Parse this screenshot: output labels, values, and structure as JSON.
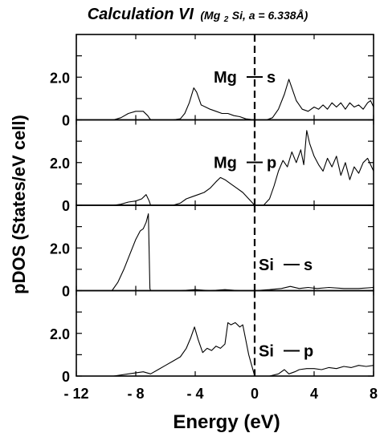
{
  "chart_data": {
    "type": "line",
    "title": "Calculation VI",
    "subtitle": "(Mg2Si, a = 6.338Å)",
    "subtitle_parts": {
      "pre": "(Mg",
      "sub": "2",
      "post": "Si, a = 6.338Å)"
    },
    "xlabel": "Energy (eV)",
    "ylabel": "pDOS (States/eV cell)",
    "xlim": [
      -12,
      8
    ],
    "x_ticks": [
      -12,
      -8,
      -4,
      0,
      4,
      8
    ],
    "x_tick_labels": [
      "- 12",
      "- 8",
      "- 4",
      "0",
      "4",
      "8"
    ],
    "ylim": [
      0,
      4
    ],
    "y_tick_labels": [
      "0",
      "2.0"
    ],
    "fermi_level": 0,
    "panels": [
      {
        "name": "Mg — s",
        "label_parts": {
          "a": "Mg",
          "b": "s"
        },
        "series": [
          [
            -12,
            0
          ],
          [
            -9.5,
            0
          ],
          [
            -9,
            0.1
          ],
          [
            -8.5,
            0.3
          ],
          [
            -8,
            0.4
          ],
          [
            -7.5,
            0.4
          ],
          [
            -7.2,
            0.2
          ],
          [
            -7,
            0
          ],
          [
            -5.5,
            0
          ],
          [
            -5,
            0.05
          ],
          [
            -4.7,
            0.3
          ],
          [
            -4.4,
            0.8
          ],
          [
            -4.1,
            1.5
          ],
          [
            -3.9,
            1.3
          ],
          [
            -3.6,
            0.7
          ],
          [
            -3.3,
            0.6
          ],
          [
            -3,
            0.5
          ],
          [
            -2.6,
            0.4
          ],
          [
            -2.2,
            0.3
          ],
          [
            -1.8,
            0.3
          ],
          [
            -1.4,
            0.2
          ],
          [
            -1,
            0.15
          ],
          [
            -0.6,
            0.05
          ],
          [
            0,
            0
          ],
          [
            0.8,
            0
          ],
          [
            1.2,
            0.1
          ],
          [
            1.6,
            0.5
          ],
          [
            2,
            1.2
          ],
          [
            2.3,
            1.9
          ],
          [
            2.5,
            1.5
          ],
          [
            2.8,
            0.9
          ],
          [
            3.2,
            0.5
          ],
          [
            3.6,
            0.4
          ],
          [
            4,
            0.6
          ],
          [
            4.3,
            0.5
          ],
          [
            4.6,
            0.7
          ],
          [
            4.9,
            0.5
          ],
          [
            5.2,
            0.8
          ],
          [
            5.5,
            0.6
          ],
          [
            5.8,
            0.8
          ],
          [
            6.1,
            0.5
          ],
          [
            6.4,
            0.8
          ],
          [
            6.7,
            0.6
          ],
          [
            7,
            0.7
          ],
          [
            7.3,
            0.5
          ],
          [
            7.6,
            0.8
          ],
          [
            7.8,
            0.9
          ],
          [
            8,
            0.6
          ]
        ]
      },
      {
        "name": "Mg — p",
        "label_parts": {
          "a": "Mg",
          "b": "p"
        },
        "series": [
          [
            -12,
            0
          ],
          [
            -9.5,
            0
          ],
          [
            -9,
            0.05
          ],
          [
            -8.5,
            0.15
          ],
          [
            -8,
            0.2
          ],
          [
            -7.6,
            0.3
          ],
          [
            -7.3,
            0.5
          ],
          [
            -7.1,
            0.2
          ],
          [
            -7,
            0
          ],
          [
            -5.5,
            0
          ],
          [
            -5,
            0.1
          ],
          [
            -4.6,
            0.3
          ],
          [
            -4.2,
            0.4
          ],
          [
            -3.8,
            0.5
          ],
          [
            -3.4,
            0.6
          ],
          [
            -3,
            0.8
          ],
          [
            -2.6,
            1.1
          ],
          [
            -2.3,
            1.3
          ],
          [
            -2,
            1.2
          ],
          [
            -1.6,
            1
          ],
          [
            -1.2,
            0.8
          ],
          [
            -0.8,
            0.6
          ],
          [
            -0.4,
            0.3
          ],
          [
            0,
            0
          ],
          [
            0.6,
            0
          ],
          [
            1,
            0.3
          ],
          [
            1.3,
            0.9
          ],
          [
            1.6,
            1.6
          ],
          [
            1.9,
            2.1
          ],
          [
            2.2,
            1.8
          ],
          [
            2.5,
            2.5
          ],
          [
            2.8,
            2
          ],
          [
            3.1,
            2.6
          ],
          [
            3.3,
            1.9
          ],
          [
            3.5,
            3.5
          ],
          [
            3.7,
            2.9
          ],
          [
            4,
            2.3
          ],
          [
            4.3,
            1.9
          ],
          [
            4.6,
            1.6
          ],
          [
            4.9,
            2.2
          ],
          [
            5.2,
            1.8
          ],
          [
            5.5,
            2.3
          ],
          [
            5.8,
            1.4
          ],
          [
            6.1,
            2
          ],
          [
            6.4,
            1.2
          ],
          [
            6.7,
            1.8
          ],
          [
            7,
            1.5
          ],
          [
            7.3,
            2
          ],
          [
            7.6,
            2.2
          ],
          [
            8,
            1.6
          ]
        ]
      },
      {
        "name": "Si — s",
        "label_parts": {
          "a": "Si",
          "b": "s"
        },
        "series": [
          [
            -12,
            0
          ],
          [
            -9.6,
            0
          ],
          [
            -9.2,
            0.4
          ],
          [
            -8.8,
            1
          ],
          [
            -8.4,
            1.7
          ],
          [
            -8,
            2.4
          ],
          [
            -7.7,
            2.8
          ],
          [
            -7.5,
            2.9
          ],
          [
            -7.3,
            3.2
          ],
          [
            -7.15,
            3.6
          ],
          [
            -7.05,
            0.1
          ],
          [
            -7,
            0
          ],
          [
            -5,
            0
          ],
          [
            -4,
            0.05
          ],
          [
            -3,
            0
          ],
          [
            -2,
            0.05
          ],
          [
            -1,
            0
          ],
          [
            0,
            0
          ],
          [
            1,
            0.05
          ],
          [
            1.8,
            0.1
          ],
          [
            2.4,
            0.2
          ],
          [
            3,
            0.1
          ],
          [
            3.6,
            0.15
          ],
          [
            4.2,
            0.1
          ],
          [
            5,
            0.15
          ],
          [
            6,
            0.1
          ],
          [
            7,
            0.1
          ],
          [
            8,
            0.15
          ]
        ]
      },
      {
        "name": "Si — p",
        "label_parts": {
          "a": "Si",
          "b": "p"
        },
        "series": [
          [
            -12,
            0
          ],
          [
            -9.5,
            0
          ],
          [
            -8.5,
            0.1
          ],
          [
            -7.5,
            0.2
          ],
          [
            -7,
            0.1
          ],
          [
            -6.5,
            0.3
          ],
          [
            -6,
            0.5
          ],
          [
            -5.5,
            0.7
          ],
          [
            -5,
            0.9
          ],
          [
            -4.6,
            1.3
          ],
          [
            -4.3,
            1.8
          ],
          [
            -4.05,
            2.3
          ],
          [
            -3.8,
            1.7
          ],
          [
            -3.5,
            1.1
          ],
          [
            -3.2,
            1.3
          ],
          [
            -2.9,
            1.2
          ],
          [
            -2.6,
            1.4
          ],
          [
            -2.3,
            1.3
          ],
          [
            -2,
            1.5
          ],
          [
            -1.8,
            2.5
          ],
          [
            -1.6,
            2.4
          ],
          [
            -1.3,
            2.5
          ],
          [
            -1,
            2.3
          ],
          [
            -0.8,
            2.4
          ],
          [
            -0.6,
            1.7
          ],
          [
            -0.4,
            1
          ],
          [
            -0.2,
            0.5
          ],
          [
            0,
            0
          ],
          [
            1,
            0
          ],
          [
            1.6,
            0.1
          ],
          [
            2,
            0.3
          ],
          [
            2.3,
            0.1
          ],
          [
            2.7,
            0.2
          ],
          [
            3,
            0.3
          ],
          [
            3.5,
            0.35
          ],
          [
            4,
            0.35
          ],
          [
            4.5,
            0.3
          ],
          [
            5,
            0.4
          ],
          [
            5.5,
            0.35
          ],
          [
            6,
            0.45
          ],
          [
            6.5,
            0.4
          ],
          [
            7,
            0.5
          ],
          [
            7.5,
            0.45
          ],
          [
            8,
            0.5
          ]
        ]
      }
    ]
  }
}
